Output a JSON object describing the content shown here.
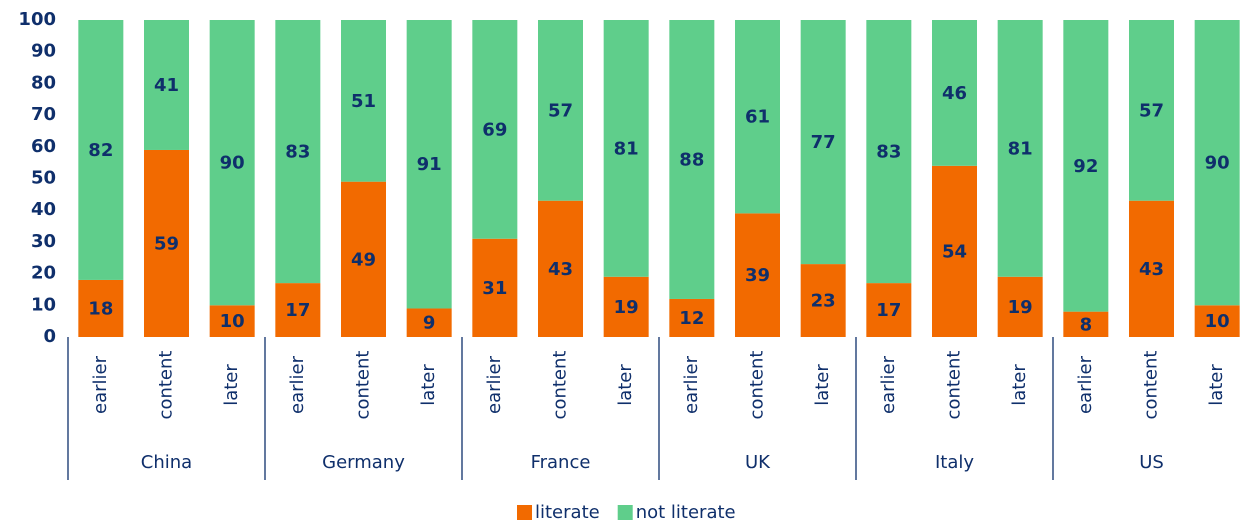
{
  "chart_data": {
    "type": "stacked_bar",
    "categories": [
      "earlier",
      "content",
      "later",
      "earlier",
      "content",
      "later",
      "earlier",
      "content",
      "later",
      "earlier",
      "content",
      "later",
      "earlier",
      "content",
      "later",
      "earlier",
      "content",
      "later"
    ],
    "groups": [
      "China",
      "Germany",
      "France",
      "UK",
      "Italy",
      "US"
    ],
    "series": [
      {
        "name": "literate",
        "color": "#f26a00",
        "values": [
          18,
          59,
          10,
          17,
          49,
          9,
          31,
          43,
          19,
          12,
          39,
          23,
          17,
          54,
          19,
          8,
          43,
          10
        ]
      },
      {
        "name": "not literate",
        "color": "#5fce8b",
        "values": [
          82,
          41,
          90,
          83,
          51,
          91,
          69,
          57,
          81,
          88,
          61,
          77,
          83,
          46,
          81,
          92,
          57,
          90
        ]
      }
    ],
    "ylim": [
      0,
      100
    ],
    "yticks": [
      0,
      10,
      20,
      30,
      40,
      50,
      60,
      70,
      80,
      90,
      100
    ],
    "legend": "bottom"
  }
}
